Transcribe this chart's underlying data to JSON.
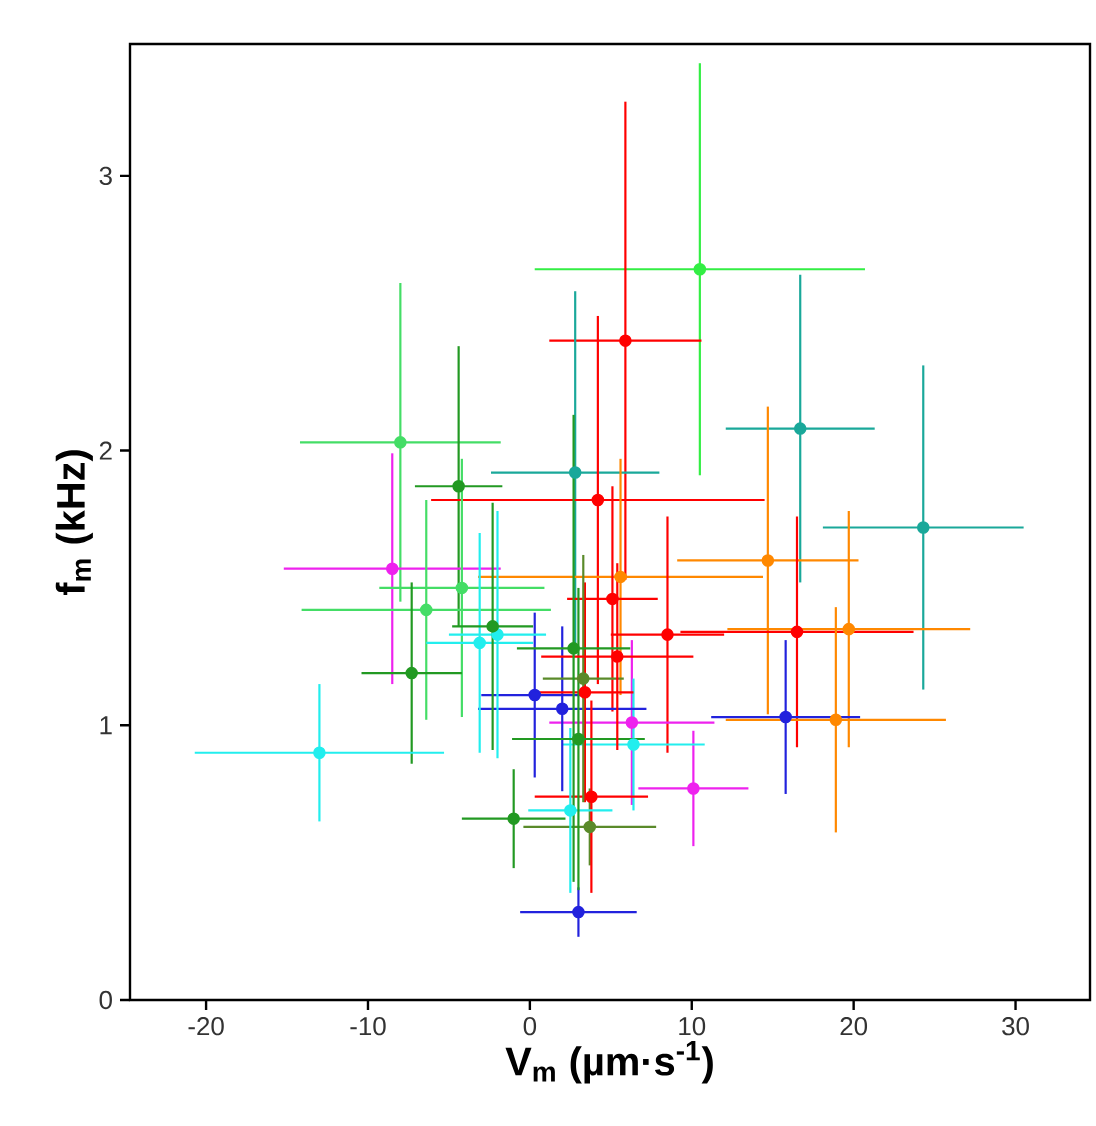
{
  "chart_data": {
    "type": "scatter",
    "xlabel": "V$_{m}$ (µm·s$^{-1}$)",
    "ylabel": "f$_{m}$ (kHz)",
    "xlim": [
      -24.7,
      34.6
    ],
    "ylim": [
      0,
      3.48
    ],
    "xticks": [
      -20,
      -10,
      0,
      10,
      20,
      30
    ],
    "yticks": [
      0,
      1,
      2,
      3
    ],
    "marker": "circle",
    "grid": false,
    "x": [
      10.5,
      5.9,
      16.7,
      24.3,
      -8.0,
      -4.4,
      2.8,
      4.2,
      14.7,
      5.6,
      5.1,
      8.5,
      16.5,
      19.7,
      15.8,
      18.9,
      10.1,
      6.3,
      6.4,
      0.3,
      2.0,
      3.0,
      -1.0,
      3.7,
      3.8,
      2.5,
      3.4,
      3.3,
      3.0,
      5.4,
      2.7,
      -8.5,
      -4.2,
      -6.4,
      -7.3,
      -13.0,
      -3.1,
      -2.0,
      -2.3
    ],
    "values": [
      2.66,
      2.4,
      2.08,
      1.72,
      2.03,
      1.87,
      1.92,
      1.82,
      1.6,
      1.54,
      1.46,
      1.33,
      1.34,
      1.35,
      1.03,
      1.02,
      0.77,
      1.01,
      0.93,
      1.11,
      1.06,
      0.32,
      0.66,
      0.63,
      0.74,
      0.69,
      1.12,
      1.17,
      0.95,
      1.25,
      1.28,
      1.57,
      1.5,
      1.42,
      1.19,
      0.9,
      1.3,
      1.33,
      1.36
    ],
    "colors": [
      "#33ee44",
      "#ff0000",
      "#1aa89a",
      "#1aa89a",
      "#44dd66",
      "#229922",
      "#1aa89a",
      "#ff0000",
      "#ff8800",
      "#ff8800",
      "#ff0000",
      "#ff0000",
      "#ff0000",
      "#ff8800",
      "#2222dd",
      "#ff8800",
      "#ee22ee",
      "#ee22ee",
      "#22eeee",
      "#2222dd",
      "#2222dd",
      "#2222dd",
      "#229922",
      "#5a8a2a",
      "#ff0000",
      "#22eeee",
      "#ff0000",
      "#5a8a2a",
      "#229922",
      "#ff0000",
      "#229922",
      "#ee22ee",
      "#44dd66",
      "#44dd66",
      "#229922",
      "#22eeee",
      "#22eeee",
      "#22eeee",
      "#229922"
    ],
    "errors": [
      0.75,
      0.87,
      0.56,
      0.59,
      0.58,
      0.51,
      0.66,
      0.67,
      0.56,
      0.43,
      0.41,
      0.43,
      0.42,
      0.43,
      0.28,
      0.41,
      0.21,
      0.3,
      0.24,
      0.3,
      0.3,
      0.09,
      0.18,
      0.14,
      0.35,
      0.3,
      0.4,
      0.45,
      0.55,
      0.34,
      0.85,
      0.42,
      0.47,
      0.4,
      0.33,
      0.25,
      0.4,
      0.45,
      0.45
    ],
    "xerrors": [
      10.2,
      4.7,
      4.6,
      6.2,
      6.2,
      2.7,
      5.2,
      10.3,
      5.6,
      8.8,
      2.8,
      3.5,
      7.2,
      7.5,
      4.6,
      6.8,
      3.4,
      5.1,
      4.4,
      3.3,
      5.2,
      3.6,
      3.2,
      4.1,
      3.5,
      2.6,
      3.0,
      2.5,
      4.1,
      4.7,
      3.5,
      6.7,
      5.1,
      7.7,
      3.1,
      7.7,
      3.3,
      3.0,
      2.5
    ]
  }
}
